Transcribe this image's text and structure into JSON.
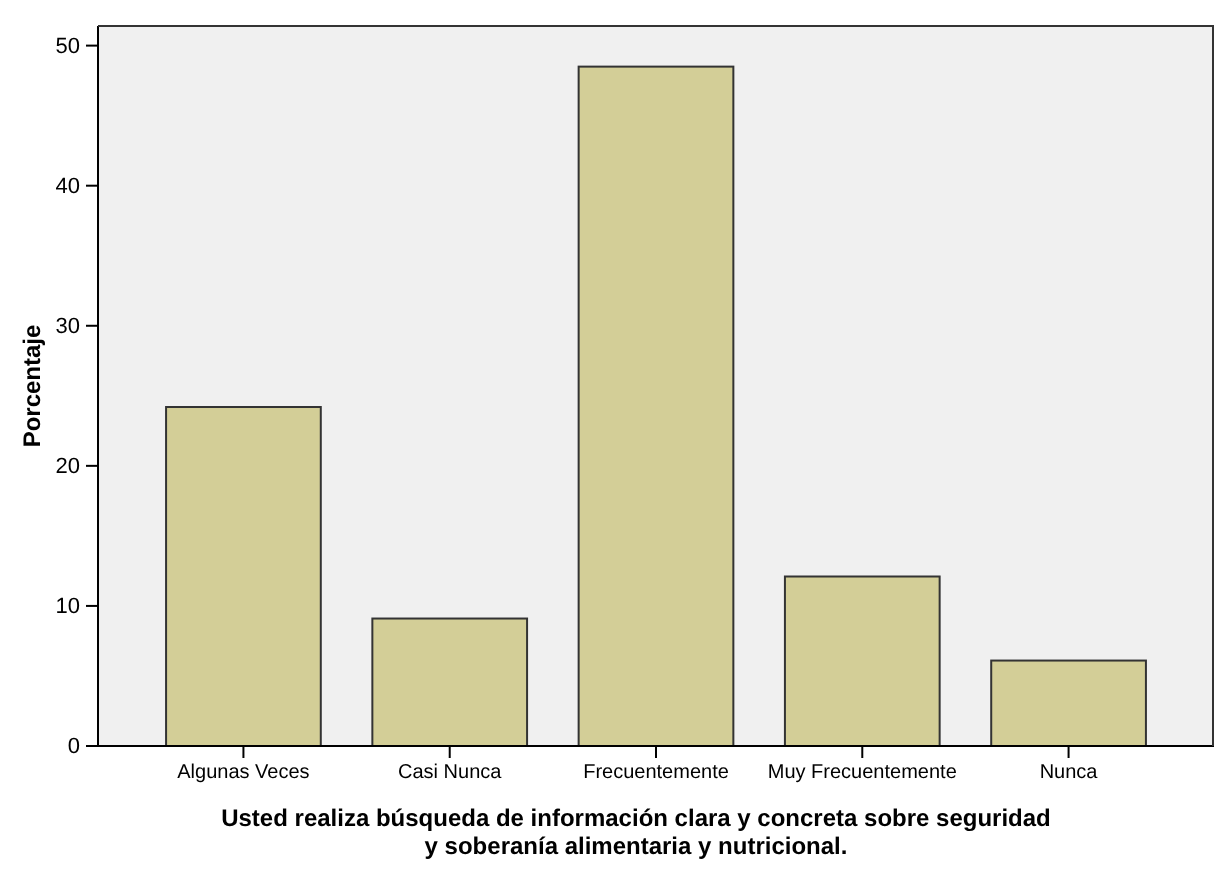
{
  "chart_data": {
    "type": "bar",
    "xlabel": "Usted realiza búsqueda de información clara y concreta sobre seguridad y soberanía alimentaria y nutricional.",
    "ylabel": "Porcentaje",
    "categories": [
      "Algunas Veces",
      "Casi Nunca",
      "Frecuentemente",
      "Muy Frecuentemente",
      "Nunca"
    ],
    "values": [
      24.2,
      9.1,
      48.5,
      12.1,
      6.1
    ],
    "color": "#d3ce97",
    "ylim": [
      0,
      51.4
    ],
    "yticks": [
      0,
      10,
      20,
      30,
      40,
      50
    ],
    "grid": false
  }
}
